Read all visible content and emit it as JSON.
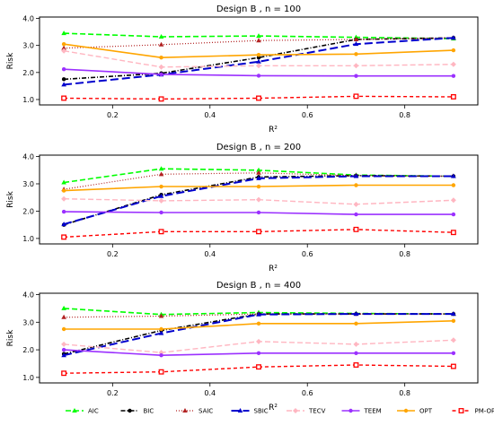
{
  "legend": {
    "entries": [
      "AIC",
      "BIC",
      "SAIC",
      "SBIC",
      "TECV",
      "TEEM",
      "OPT",
      "PM-OPT"
    ]
  },
  "series_styles": [
    {
      "name": "AIC",
      "color": "#00ff00",
      "dash": "6,3",
      "marker": "triangle",
      "width": 1.6
    },
    {
      "name": "BIC",
      "color": "#000000",
      "dash": "5,2,1,2",
      "marker": "dot",
      "width": 1.6
    },
    {
      "name": "SAIC",
      "color": "#b22222",
      "dash": "1,2",
      "marker": "triangle",
      "width": 1.2
    },
    {
      "name": "SBIC",
      "color": "#0000cd",
      "dash": "9,4",
      "marker": "triangle",
      "width": 2.0
    },
    {
      "name": "TECV",
      "color": "#ffb6c1",
      "dash": "6,3",
      "marker": "diamond",
      "width": 1.4
    },
    {
      "name": "TEEM",
      "color": "#9b30ff",
      "dash": "",
      "marker": "dot",
      "width": 1.6
    },
    {
      "name": "OPT",
      "color": "#ffa500",
      "dash": "",
      "marker": "dot",
      "width": 1.6
    },
    {
      "name": "PM-OPT",
      "color": "#ff0000",
      "dash": "4,3",
      "marker": "square",
      "width": 1.4
    }
  ],
  "chart_data": [
    {
      "type": "line",
      "title": "Design B , n = 100",
      "xlabel": "R²",
      "ylabel": "Risk",
      "x": [
        0.1,
        0.3,
        0.5,
        0.7,
        0.9
      ],
      "xlim": [
        0.05,
        0.95
      ],
      "ylim": [
        0.8,
        4.05
      ],
      "xticks": [
        "0.2",
        "0.4",
        "0.6",
        "0.8"
      ],
      "yticks": [
        "1.0",
        "2.0",
        "3.0",
        "4.0"
      ],
      "series": [
        {
          "name": "AIC",
          "values": [
            3.45,
            3.32,
            3.35,
            3.3,
            3.25
          ]
        },
        {
          "name": "BIC",
          "values": [
            1.75,
            1.97,
            2.55,
            3.22,
            3.28
          ]
        },
        {
          "name": "SAIC",
          "values": [
            2.9,
            3.03,
            3.18,
            3.22,
            3.28
          ]
        },
        {
          "name": "SBIC",
          "values": [
            1.55,
            1.92,
            2.4,
            3.05,
            3.28
          ]
        },
        {
          "name": "TECV",
          "values": [
            2.8,
            2.2,
            2.25,
            2.25,
            2.3
          ]
        },
        {
          "name": "TEEM",
          "values": [
            2.12,
            1.93,
            1.88,
            1.87,
            1.87
          ]
        },
        {
          "name": "OPT",
          "values": [
            3.05,
            2.55,
            2.65,
            2.68,
            2.82
          ]
        },
        {
          "name": "PM-OPT",
          "values": [
            1.05,
            1.02,
            1.05,
            1.12,
            1.1
          ]
        }
      ]
    },
    {
      "type": "line",
      "title": "Design B , n = 200",
      "xlabel": "R²",
      "ylabel": "Risk",
      "x": [
        0.1,
        0.3,
        0.5,
        0.7,
        0.9
      ],
      "xlim": [
        0.05,
        0.95
      ],
      "ylim": [
        0.8,
        4.05
      ],
      "xticks": [
        "0.2",
        "0.4",
        "0.6",
        "0.8"
      ],
      "yticks": [
        "1.0",
        "2.0",
        "3.0",
        "4.0"
      ],
      "series": [
        {
          "name": "AIC",
          "values": [
            3.05,
            3.55,
            3.5,
            3.32,
            3.28
          ]
        },
        {
          "name": "BIC",
          "values": [
            1.5,
            2.6,
            3.25,
            3.3,
            3.28
          ]
        },
        {
          "name": "SAIC",
          "values": [
            2.8,
            3.35,
            3.4,
            3.3,
            3.28
          ]
        },
        {
          "name": "SBIC",
          "values": [
            1.52,
            2.55,
            3.2,
            3.28,
            3.28
          ]
        },
        {
          "name": "TECV",
          "values": [
            2.45,
            2.38,
            2.42,
            2.25,
            2.4
          ]
        },
        {
          "name": "TEEM",
          "values": [
            1.98,
            1.95,
            1.95,
            1.88,
            1.88
          ]
        },
        {
          "name": "OPT",
          "values": [
            2.75,
            2.9,
            2.9,
            2.95,
            2.95
          ]
        },
        {
          "name": "PM-OPT",
          "values": [
            1.05,
            1.25,
            1.25,
            1.33,
            1.22
          ]
        }
      ]
    },
    {
      "type": "line",
      "title": "Design B , n = 400",
      "xlabel": "R²",
      "ylabel": "Risk",
      "x": [
        0.1,
        0.3,
        0.5,
        0.7,
        0.9
      ],
      "xlim": [
        0.05,
        0.95
      ],
      "ylim": [
        0.8,
        4.05
      ],
      "xticks": [
        "0.2",
        "0.4",
        "0.6",
        "0.8"
      ],
      "yticks": [
        "1.0",
        "2.0",
        "3.0",
        "4.0"
      ],
      "series": [
        {
          "name": "AIC",
          "values": [
            3.5,
            3.28,
            3.35,
            3.32,
            3.3
          ]
        },
        {
          "name": "BIC",
          "values": [
            1.85,
            2.7,
            3.3,
            3.3,
            3.3
          ]
        },
        {
          "name": "SAIC",
          "values": [
            3.18,
            3.22,
            3.3,
            3.3,
            3.3
          ]
        },
        {
          "name": "SBIC",
          "values": [
            1.8,
            2.6,
            3.28,
            3.3,
            3.3
          ]
        },
        {
          "name": "TECV",
          "values": [
            2.2,
            1.9,
            2.3,
            2.2,
            2.35
          ]
        },
        {
          "name": "TEEM",
          "values": [
            2.0,
            1.8,
            1.88,
            1.88,
            1.88
          ]
        },
        {
          "name": "OPT",
          "values": [
            2.75,
            2.75,
            2.95,
            2.95,
            3.05
          ]
        },
        {
          "name": "PM-OPT",
          "values": [
            1.15,
            1.2,
            1.38,
            1.45,
            1.4
          ]
        }
      ]
    }
  ]
}
